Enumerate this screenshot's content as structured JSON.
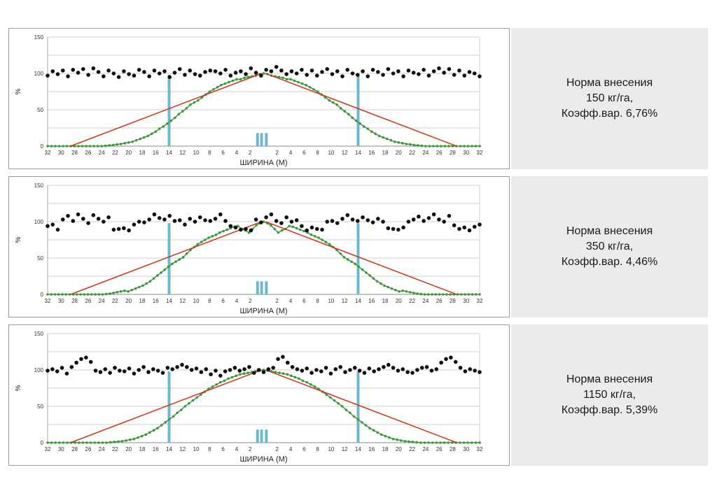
{
  "colors": {
    "measured_black": "#111111",
    "measured_green": "#3c9a3c",
    "theoretical_red": "#d23a22",
    "marker_blue": "#6fb7cf",
    "grid": "#cfcfcf",
    "info_bg": "#ebebeb"
  },
  "chart_data": [
    {
      "type": "scatter",
      "xlabel": "ШИРИНА (М)",
      "ylabel": "%",
      "ylim": [
        0,
        150
      ],
      "yticks": [
        0,
        50,
        100,
        150
      ],
      "xticks": [
        "32",
        "30",
        "28",
        "26",
        "24",
        "22",
        "20",
        "18",
        "16",
        "14",
        "12",
        "10",
        "8",
        "6",
        "4",
        "2",
        "",
        "2",
        "4",
        "6",
        "8",
        "10",
        "12",
        "14",
        "16",
        "18",
        "20",
        "22",
        "24",
        "26",
        "28",
        "30",
        "32"
      ],
      "series": [
        {
          "name": "total",
          "values": [
            97,
            103,
            99,
            104,
            96,
            105,
            101,
            106,
            98,
            107,
            102,
            96,
            104,
            100,
            95,
            103,
            99,
            97,
            105,
            102,
            96,
            104,
            100,
            103,
            95,
            101,
            106,
            98,
            104,
            99,
            97,
            102,
            104,
            103,
            100,
            105,
            97,
            101,
            103,
            99,
            107,
            101,
            97,
            105,
            103,
            109,
            104,
            99,
            103,
            100,
            105,
            98,
            104,
            97,
            102,
            106,
            99,
            103,
            96,
            105,
            100,
            98,
            103,
            96,
            105,
            102,
            98,
            106,
            100,
            103,
            96,
            104,
            101,
            99,
            105,
            97,
            103,
            107,
            101,
            106,
            98,
            104,
            97,
            102,
            100,
            96
          ]
        },
        {
          "name": "single_pass",
          "values": [
            0,
            0,
            0,
            0,
            0,
            0,
            0,
            0,
            0,
            0,
            0,
            0,
            0,
            0,
            0,
            0.5,
            1,
            1.5,
            2.5,
            3,
            4,
            5,
            6,
            8,
            10,
            12,
            14,
            17,
            20,
            24,
            27,
            31,
            35,
            39,
            44,
            48,
            52,
            57,
            60,
            63,
            67,
            71,
            75,
            78,
            81,
            84,
            86,
            88,
            90,
            92,
            92,
            94,
            95,
            96,
            97,
            99,
            100
          ]
        },
        {
          "name": "theoretical",
          "values": [
            {
              "x": -28.6,
              "y": 0
            },
            {
              "x": 0,
              "y": 100
            },
            {
              "x": 28.6,
              "y": 0
            }
          ]
        },
        {
          "name": "pass_markers",
          "values": [
            -14,
            -0.9,
            -0.3,
            0.4,
            14
          ]
        }
      ]
    },
    {
      "type": "scatter",
      "xlabel": "ШИРИНА (М)",
      "ylabel": "%",
      "ylim": [
        0,
        150
      ],
      "yticks": [
        0,
        50,
        100,
        150
      ],
      "xticks": [
        "32",
        "30",
        "28",
        "26",
        "24",
        "22",
        "20",
        "18",
        "16",
        "14",
        "12",
        "10",
        "8",
        "6",
        "4",
        "2",
        "",
        "2",
        "4",
        "6",
        "8",
        "10",
        "12",
        "14",
        "16",
        "18",
        "20",
        "22",
        "24",
        "26",
        "28",
        "30",
        "32"
      ],
      "series": [
        {
          "name": "total",
          "values": [
            94,
            96,
            89,
            103,
            108,
            101,
            110,
            104,
            98,
            109,
            104,
            100,
            106,
            89,
            90,
            91,
            88,
            96,
            100,
            99,
            103,
            110,
            105,
            103,
            108,
            101,
            102,
            96,
            104,
            100,
            106,
            102,
            101,
            104,
            110,
            101,
            94,
            92,
            89,
            90,
            88,
            103,
            99,
            106,
            110,
            101,
            98,
            106,
            100,
            102,
            94,
            88,
            92,
            90,
            89,
            100,
            101,
            98,
            104,
            109,
            103,
            101,
            106,
            102,
            99,
            104,
            100,
            91,
            90,
            89,
            92,
            100,
            103,
            107,
            101,
            105,
            110,
            103,
            100,
            108,
            95,
            90,
            92,
            88,
            93,
            96
          ]
        },
        {
          "name": "single_pass",
          "values": [
            0,
            0,
            0,
            0,
            0,
            0,
            0,
            0,
            0,
            0,
            0,
            0,
            0,
            0,
            0,
            0,
            0.5,
            1,
            2,
            3,
            4,
            5,
            4,
            6,
            8,
            10,
            12,
            15,
            18,
            22,
            26,
            30,
            34,
            38,
            42,
            45,
            48,
            51,
            56,
            61,
            65,
            69,
            72,
            75,
            78,
            80,
            82,
            85,
            87,
            89,
            91,
            93,
            94,
            90,
            88,
            85,
            90,
            95,
            98,
            100
          ]
        },
        {
          "name": "theoretical",
          "values": [
            {
              "x": -28.6,
              "y": 0
            },
            {
              "x": 0,
              "y": 100
            },
            {
              "x": 28.6,
              "y": 0
            }
          ]
        },
        {
          "name": "pass_markers",
          "values": [
            -14,
            -0.9,
            -0.3,
            0.4,
            14
          ]
        }
      ]
    },
    {
      "type": "scatter",
      "xlabel": "ШИРИНА (М)",
      "ylabel": "%",
      "ylim": [
        0,
        150
      ],
      "yticks": [
        0,
        50,
        100,
        150
      ],
      "xticks": [
        "32",
        "30",
        "28",
        "26",
        "24",
        "22",
        "20",
        "18",
        "16",
        "14",
        "12",
        "10",
        "8",
        "6",
        "4",
        "2",
        "",
        "2",
        "4",
        "6",
        "8",
        "10",
        "12",
        "14",
        "16",
        "18",
        "20",
        "22",
        "24",
        "26",
        "28",
        "30",
        "32"
      ],
      "series": [
        {
          "name": "total",
          "values": [
            99,
            101,
            98,
            103,
            95,
            104,
            110,
            115,
            117,
            111,
            99,
            97,
            101,
            96,
            103,
            99,
            98,
            102,
            95,
            100,
            104,
            97,
            101,
            99,
            96,
            103,
            101,
            104,
            107,
            104,
            100,
            102,
            97,
            101,
            94,
            99,
            92,
            98,
            100,
            103,
            99,
            101,
            104,
            96,
            100,
            97,
            101,
            103,
            115,
            118,
            110,
            104,
            101,
            99,
            102,
            96,
            100,
            98,
            103,
            95,
            101,
            104,
            97,
            100,
            103,
            99,
            96,
            102,
            98,
            101,
            104,
            107,
            103,
            99,
            101,
            97,
            96,
            100,
            103,
            104,
            99,
            101,
            110,
            115,
            117,
            111,
            103,
            98,
            101,
            99,
            97
          ]
        },
        {
          "name": "single_pass",
          "values": [
            0,
            0,
            0,
            0,
            0,
            0,
            0,
            0,
            0,
            0,
            0,
            0,
            0,
            0,
            0,
            0,
            0.5,
            1,
            1.5,
            2,
            3,
            4,
            5,
            7,
            9,
            11,
            14,
            17,
            20,
            24,
            28,
            32,
            36,
            41,
            45,
            50,
            54,
            58,
            62,
            66,
            70,
            74,
            77,
            80,
            83,
            85,
            88,
            90,
            92,
            94,
            95,
            96,
            97,
            98,
            99,
            100
          ]
        },
        {
          "name": "theoretical",
          "values": [
            {
              "x": -28.6,
              "y": 0
            },
            {
              "x": 0,
              "y": 100
            },
            {
              "x": 28.6,
              "y": 0
            }
          ]
        },
        {
          "name": "pass_markers",
          "values": [
            -14,
            -0.9,
            -0.3,
            0.4,
            14
          ]
        }
      ]
    }
  ],
  "info": [
    {
      "line1": "Норма внесения",
      "line2": "150 кг/га,",
      "line3": "Коэфф.вар. 6,76%"
    },
    {
      "line1": "Норма внесения",
      "line2": "350 кг/га,",
      "line3": "Коэфф.вар. 4,46%"
    },
    {
      "line1": "Норма внесения",
      "line2": "1150 кг/га,",
      "line3": "Коэфф.вар. 5,39%"
    }
  ]
}
